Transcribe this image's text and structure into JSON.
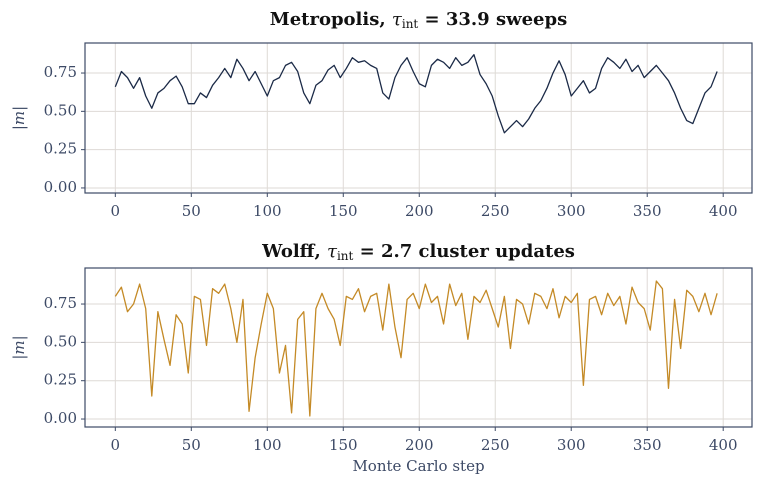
{
  "chart_data": [
    {
      "type": "line",
      "title": [
        "Metropolis, ",
        "τ",
        "int",
        " = 33.9 sweeps"
      ],
      "ylabel": "|m|",
      "x": [
        0,
        4,
        8,
        12,
        16,
        20,
        24,
        28,
        32,
        36,
        40,
        44,
        48,
        52,
        56,
        60,
        64,
        68,
        72,
        76,
        80,
        84,
        88,
        92,
        96,
        100,
        104,
        108,
        112,
        116,
        120,
        124,
        128,
        132,
        136,
        140,
        144,
        148,
        152,
        156,
        160,
        164,
        168,
        172,
        176,
        180,
        184,
        188,
        192,
        196,
        200,
        204,
        208,
        212,
        216,
        220,
        224,
        228,
        232,
        236,
        240,
        244,
        248,
        252,
        256,
        260,
        264,
        268,
        272,
        276,
        280,
        284,
        288,
        292,
        296,
        300,
        304,
        308,
        312,
        316,
        320,
        324,
        328,
        332,
        336,
        340,
        344,
        348,
        352,
        356,
        360,
        364,
        368,
        372,
        376,
        380,
        384,
        388,
        392,
        396
      ],
      "series": [
        {
          "name": "Metropolis",
          "color": "#1b2a47",
          "values": [
            0.66,
            0.76,
            0.72,
            0.65,
            0.72,
            0.6,
            0.52,
            0.62,
            0.65,
            0.7,
            0.73,
            0.66,
            0.55,
            0.55,
            0.62,
            0.59,
            0.67,
            0.72,
            0.78,
            0.72,
            0.84,
            0.78,
            0.7,
            0.76,
            0.68,
            0.6,
            0.7,
            0.72,
            0.8,
            0.82,
            0.76,
            0.62,
            0.55,
            0.67,
            0.7,
            0.77,
            0.8,
            0.72,
            0.78,
            0.85,
            0.82,
            0.83,
            0.8,
            0.78,
            0.62,
            0.58,
            0.72,
            0.8,
            0.85,
            0.76,
            0.68,
            0.66,
            0.8,
            0.84,
            0.82,
            0.78,
            0.85,
            0.8,
            0.82,
            0.87,
            0.74,
            0.68,
            0.6,
            0.47,
            0.36,
            0.4,
            0.44,
            0.4,
            0.45,
            0.52,
            0.57,
            0.65,
            0.75,
            0.83,
            0.74,
            0.6,
            0.65,
            0.7,
            0.62,
            0.65,
            0.78,
            0.85,
            0.82,
            0.78,
            0.84,
            0.76,
            0.8,
            0.72,
            0.76,
            0.8,
            0.75,
            0.7,
            0.62,
            0.52,
            0.44,
            0.42,
            0.52,
            0.62,
            0.66,
            0.76
          ]
        }
      ],
      "xlim": [
        -19.95,
        418.95
      ],
      "xticks": [
        0,
        50,
        100,
        150,
        200,
        250,
        300,
        350,
        400
      ],
      "ylim": [
        -0.033,
        0.946
      ],
      "yticks": [
        {
          "value": 0,
          "label": "0.00"
        },
        {
          "value": 0.25,
          "label": "0.25"
        },
        {
          "value": 0.5,
          "label": "0.50"
        },
        {
          "value": 0.75,
          "label": "0.75"
        }
      ],
      "grid": true
    },
    {
      "type": "line",
      "title": [
        "Wolff, ",
        "τ",
        "int",
        " = 2.7 cluster updates"
      ],
      "ylabel": "|m|",
      "xlabel": "Monte Carlo step",
      "x": [
        0,
        4,
        8,
        12,
        16,
        20,
        24,
        28,
        32,
        36,
        40,
        44,
        48,
        52,
        56,
        60,
        64,
        68,
        72,
        76,
        80,
        84,
        88,
        92,
        96,
        100,
        104,
        108,
        112,
        116,
        120,
        124,
        128,
        132,
        136,
        140,
        144,
        148,
        152,
        156,
        160,
        164,
        168,
        172,
        176,
        180,
        184,
        188,
        192,
        196,
        200,
        204,
        208,
        212,
        216,
        220,
        224,
        228,
        232,
        236,
        240,
        244,
        248,
        252,
        256,
        260,
        264,
        268,
        272,
        276,
        280,
        284,
        288,
        292,
        296,
        300,
        304,
        308,
        312,
        316,
        320,
        324,
        328,
        332,
        336,
        340,
        344,
        348,
        352,
        356,
        360,
        364,
        368,
        372,
        376,
        380,
        384,
        388,
        392,
        396
      ],
      "series": [
        {
          "name": "Wolff",
          "color": "#c48a26",
          "values": [
            0.8,
            0.86,
            0.7,
            0.75,
            0.88,
            0.72,
            0.15,
            0.7,
            0.52,
            0.35,
            0.68,
            0.62,
            0.3,
            0.8,
            0.78,
            0.48,
            0.85,
            0.82,
            0.88,
            0.72,
            0.5,
            0.78,
            0.05,
            0.4,
            0.62,
            0.82,
            0.72,
            0.3,
            0.48,
            0.04,
            0.65,
            0.7,
            0.02,
            0.72,
            0.82,
            0.72,
            0.65,
            0.48,
            0.8,
            0.78,
            0.85,
            0.7,
            0.8,
            0.82,
            0.58,
            0.88,
            0.6,
            0.4,
            0.78,
            0.82,
            0.72,
            0.88,
            0.76,
            0.8,
            0.62,
            0.88,
            0.74,
            0.82,
            0.52,
            0.8,
            0.76,
            0.84,
            0.72,
            0.6,
            0.8,
            0.46,
            0.78,
            0.75,
            0.62,
            0.82,
            0.8,
            0.72,
            0.85,
            0.66,
            0.8,
            0.76,
            0.82,
            0.22,
            0.78,
            0.8,
            0.68,
            0.82,
            0.74,
            0.8,
            0.62,
            0.86,
            0.76,
            0.72,
            0.58,
            0.9,
            0.85,
            0.2,
            0.78,
            0.46,
            0.84,
            0.8,
            0.7,
            0.82,
            0.68,
            0.82
          ]
        }
      ],
      "xlim": [
        -19.95,
        418.95
      ],
      "xticks": [
        0,
        50,
        100,
        150,
        200,
        250,
        300,
        350,
        400
      ],
      "ylim": [
        -0.052,
        0.985
      ],
      "yticks": [
        {
          "value": 0,
          "label": "0.00"
        },
        {
          "value": 0.25,
          "label": "0.25"
        },
        {
          "value": 0.5,
          "label": "0.50"
        },
        {
          "value": 0.75,
          "label": "0.75"
        }
      ],
      "grid": true
    }
  ]
}
